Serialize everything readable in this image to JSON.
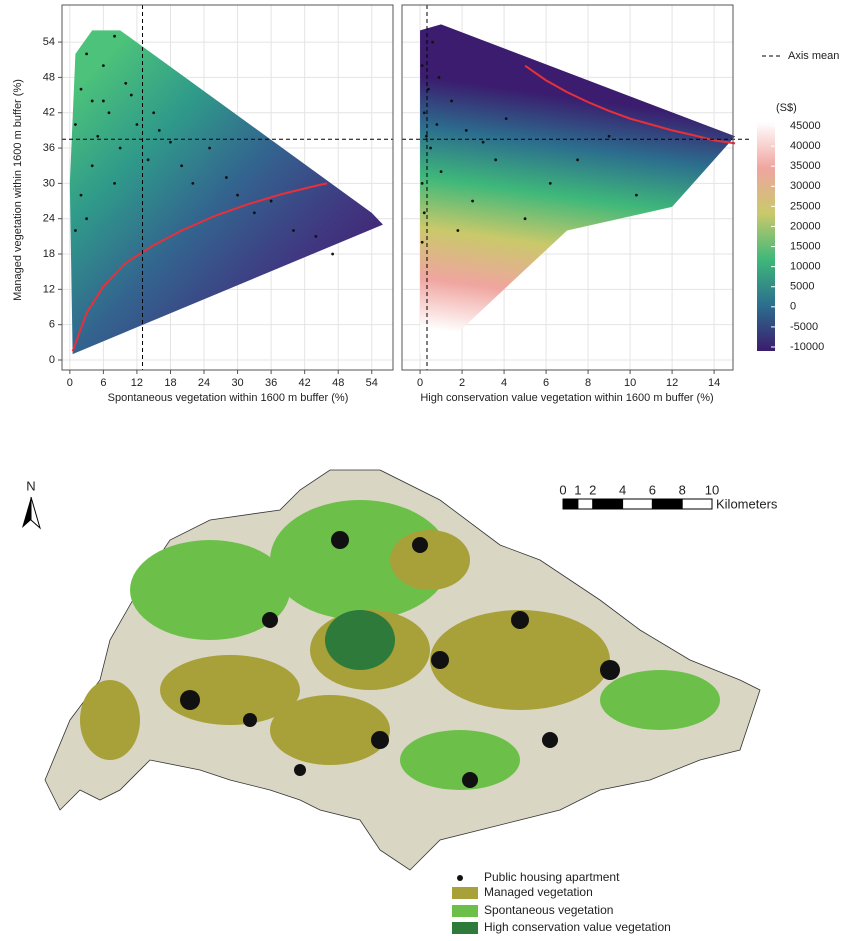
{
  "chart_data": [
    {
      "type": "scatter",
      "xlabel": "Spontaneous vegetation within 1600 m buffer (%)",
      "ylabel": "Managed vegetation within 1600 m buffer (%)",
      "xlim": [
        -1.4,
        57.8
      ],
      "ylim": [
        -1.7,
        60.3
      ],
      "xticks": [
        0,
        6,
        12,
        18,
        24,
        30,
        36,
        42,
        48,
        54
      ],
      "yticks": [
        0,
        6,
        12,
        18,
        24,
        30,
        36,
        42,
        48,
        54
      ],
      "grid": true,
      "axis_mean": {
        "x": 13,
        "y": 37.5
      },
      "surface": {
        "x": [
          0.5,
          0,
          1,
          4,
          9,
          54,
          56,
          0.5
        ],
        "y": [
          1,
          30,
          52,
          56,
          56,
          25,
          23,
          1
        ],
        "colors": [
          "#4cc27a",
          "#2f9a8a",
          "#33648f",
          "#3f3a82",
          "#461a6e"
        ]
      },
      "curve": {
        "x": [
          0.5,
          3,
          6,
          10,
          15,
          20,
          26,
          32,
          38,
          44,
          46
        ],
        "values": [
          1.5,
          8,
          12.5,
          16.5,
          19.5,
          22,
          24.5,
          26.5,
          28.2,
          29.6,
          30
        ],
        "color": "#e8303a"
      },
      "x": [
        1,
        2,
        3,
        4,
        5,
        6,
        7,
        8,
        9,
        10,
        12,
        14,
        16,
        18,
        20,
        22,
        25,
        28,
        30,
        33,
        36,
        40,
        44,
        47,
        2,
        4,
        6,
        1,
        3,
        8,
        11,
        15
      ],
      "values": [
        40,
        46,
        52,
        44,
        38,
        50,
        42,
        55,
        36,
        47,
        40,
        34,
        39,
        37,
        33,
        30,
        36,
        31,
        28,
        25,
        27,
        22,
        21,
        18,
        28,
        33,
        44,
        22,
        24,
        30,
        45,
        42
      ],
      "point_color": "#111111"
    },
    {
      "type": "scatter",
      "xlabel": "High conservation value vegetation within 1600 m buffer (%)",
      "xlim": [
        -0.86,
        14.9
      ],
      "ylim": [
        -1.7,
        60.3
      ],
      "xticks": [
        0,
        2,
        4,
        6,
        8,
        10,
        12,
        14
      ],
      "grid": true,
      "axis_mean": {
        "x": 0.33,
        "y": 37.5
      },
      "surface": {
        "x": [
          0,
          0,
          1,
          15,
          13,
          12,
          7,
          1,
          0
        ],
        "y": [
          1,
          56,
          57,
          38,
          30,
          26,
          22,
          2,
          1
        ],
        "colors": [
          "#3b1c6e",
          "#2c6e8e",
          "#3fb87a",
          "#c9c96a",
          "#f0a5a0",
          "#ffffff"
        ]
      },
      "curve": {
        "x": [
          5,
          6,
          7,
          8,
          9,
          10,
          11,
          12,
          13,
          14,
          15
        ],
        "values": [
          50,
          47.5,
          45.5,
          43.8,
          42.3,
          41,
          40,
          39,
          38.2,
          37.3,
          36.8
        ],
        "color": "#e8303a"
      },
      "x": [
        0.1,
        0.2,
        0.1,
        0.3,
        0.2,
        0.4,
        0.1,
        0.5,
        0.8,
        1.0,
        1.5,
        2.2,
        3.0,
        4.1,
        5.0,
        6.2,
        7.5,
        9.0,
        10.3,
        2.5,
        0.6,
        0.9,
        1.8,
        3.6
      ],
      "values": [
        30,
        42,
        50,
        38,
        25,
        46,
        20,
        36,
        40,
        32,
        44,
        39,
        37,
        41,
        24,
        30,
        34,
        38,
        28,
        27,
        54,
        48,
        22,
        34
      ],
      "point_color": "#111111"
    }
  ],
  "legend": {
    "axis_mean": "Axis mean",
    "colorbar_title": "(S$)",
    "colorbar_lim": [
      -11000,
      46000
    ],
    "colorbar_ticks": [
      45000,
      40000,
      35000,
      30000,
      25000,
      20000,
      15000,
      10000,
      5000,
      0,
      -5000,
      -10000
    ],
    "colorbar_colors": [
      "#ffffff",
      "#f0a5a0",
      "#c9c96a",
      "#3fb87a",
      "#2c6e8e",
      "#3b1c6e"
    ]
  },
  "map": {
    "north": "N",
    "scale_ticks": [
      0,
      1,
      2,
      4,
      6,
      8,
      10
    ],
    "scale_unit": "Kilometers",
    "legend": [
      "Public housing apartment",
      "Managed vegetation",
      "Spontaneous vegetation",
      "High conservation value vegetation"
    ]
  }
}
